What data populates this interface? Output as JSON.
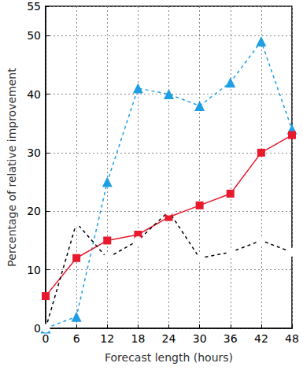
{
  "chart_data": {
    "type": "line",
    "x_label": "Forecast length (hours)",
    "y_label": "Percentage of relative improvement",
    "x": [
      0,
      6,
      12,
      18,
      24,
      30,
      36,
      42,
      48
    ],
    "xlim": [
      0,
      48
    ],
    "xticks": [
      0,
      6,
      12,
      18,
      24,
      30,
      36,
      42,
      48
    ],
    "ylim": [
      0,
      55
    ],
    "yticks": [
      0,
      10,
      20,
      30,
      40,
      50
    ],
    "grid": true,
    "series": [
      {
        "color": "#1e9fe3",
        "marker": "triangle",
        "line_style": "dashed",
        "values": [
          0,
          2,
          25,
          41,
          40,
          38,
          42,
          49,
          34
        ]
      },
      {
        "color": "#e8192c",
        "marker": "square",
        "line_style": "solid",
        "values": [
          5.5,
          12,
          15,
          16,
          19,
          21,
          23,
          30,
          33
        ]
      },
      {
        "color": "#000000",
        "marker": "circle",
        "line_style": "dashed",
        "values": [
          0,
          18,
          12,
          15,
          20,
          12,
          13,
          15,
          13
        ]
      }
    ]
  }
}
